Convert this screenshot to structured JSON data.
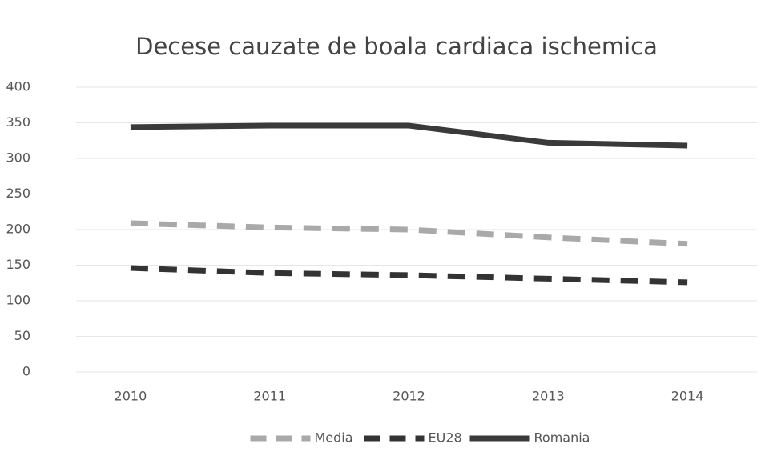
{
  "chart_data": {
    "type": "line",
    "title": "Decese cauzate de boala cardiaca ischemica",
    "categories": [
      "2010",
      "2011",
      "2012",
      "2013",
      "2014"
    ],
    "series": [
      {
        "name": "Media",
        "color": "#a9a9a9",
        "style": "dashed",
        "values": [
          209,
          203,
          200,
          189,
          180
        ]
      },
      {
        "name": "EU28",
        "color": "#333333",
        "style": "dashed",
        "values": [
          146,
          139,
          136,
          131,
          126
        ]
      },
      {
        "name": "Romania",
        "color": "#3a3a3a",
        "style": "solid",
        "values": [
          344,
          346,
          346,
          322,
          318
        ]
      }
    ],
    "ylim": [
      0,
      400
    ],
    "yticks": [
      0,
      50,
      100,
      150,
      200,
      250,
      300,
      350,
      400
    ],
    "grid": true,
    "legend": "bottom"
  }
}
